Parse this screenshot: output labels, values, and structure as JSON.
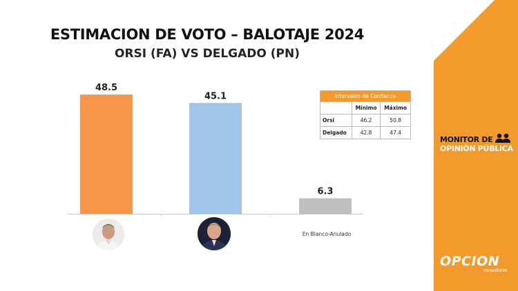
{
  "header": {
    "title": "ESTIMACION DE VOTO – BALOTAJE 2024",
    "subtitle": "ORSI (FA) VS DELGADO (PN)"
  },
  "chart_data": {
    "type": "bar",
    "categories": [
      "Orsi",
      "Delgado",
      "En Blanco-Anulado"
    ],
    "values": [
      48.5,
      45.1,
      6.3
    ],
    "value_labels": [
      "48.5",
      "45.1",
      "6.3"
    ],
    "colors": [
      "#f7954a",
      "#9fc5e8",
      "#bfbfbf"
    ],
    "visible_category_labels": [
      "",
      "",
      "En Blanco-Anulado"
    ],
    "ylim": [
      0,
      55
    ]
  },
  "confidence_table": {
    "title": "Intervalos de Confianza",
    "columns": [
      "",
      "Mínimo",
      "Máximo"
    ],
    "rows": [
      {
        "label": "Orsi",
        "min": "46.2",
        "max": "50.8"
      },
      {
        "label": "Delgado",
        "min": "42.8",
        "max": "47.4"
      }
    ]
  },
  "branding": {
    "monitor_line1": "MONITOR DE",
    "monitor_line2": "OPINIÓN PÚBLICA",
    "company": "OPCION",
    "company_sub": "consultores",
    "accent": "#f39a2d"
  }
}
